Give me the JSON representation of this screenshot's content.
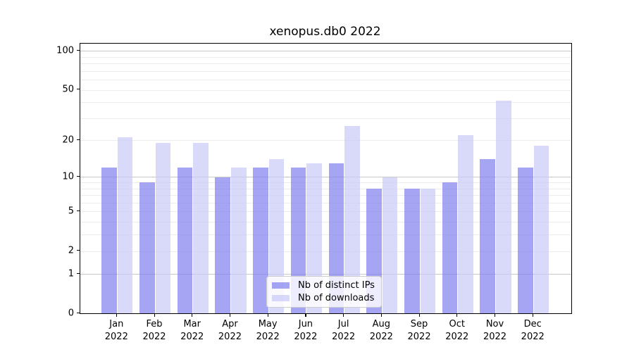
{
  "figure": {
    "title": "xenopus.db0 2022",
    "background_color": "#ffffff",
    "spine_color": "#000000"
  },
  "chart_data": {
    "type": "bar",
    "title": "xenopus.db0 2022",
    "categories": [
      "Jan 2022",
      "Feb 2022",
      "Mar 2022",
      "Apr 2022",
      "May 2022",
      "Jun 2022",
      "Jul 2022",
      "Aug 2022",
      "Sep 2022",
      "Oct 2022",
      "Nov 2022",
      "Dec 2022"
    ],
    "series": [
      {
        "name": "Nb of distinct IPs",
        "color": "rgba(130,130,240,0.72)",
        "color_hex_apparent": "#a5a5f4",
        "values": [
          12,
          9,
          12,
          10,
          12,
          12,
          13,
          8,
          8,
          9,
          14,
          12
        ]
      },
      {
        "name": "Nb of downloads",
        "color": "rgba(203,203,246,0.72)",
        "color_hex_apparent": "#dadaf8",
        "values": [
          21,
          19,
          19,
          12,
          14,
          13,
          26,
          10,
          8,
          22,
          41,
          18
        ]
      }
    ],
    "xlabel": "",
    "ylabel": "",
    "yscale": "log10(1+v)",
    "ylim": [
      0,
      114
    ],
    "ytick_values": [
      0,
      1,
      2,
      5,
      10,
      20,
      50,
      100
    ],
    "major_gridline_values": [
      1,
      10,
      100
    ],
    "minor_gridline_values": [
      2,
      3,
      4,
      5,
      6,
      7,
      8,
      9,
      20,
      30,
      40,
      50,
      60,
      70,
      80,
      90
    ],
    "grid": true,
    "legend_position": "lower center"
  },
  "legend": {
    "items": [
      {
        "label": "Nb of distinct IPs",
        "swatch_color": "rgba(130,130,240,0.72)"
      },
      {
        "label": "Nb of downloads",
        "swatch_color": "rgba(203,203,246,0.72)"
      }
    ]
  },
  "colors": {
    "gridline_minor": "#ececec",
    "gridline_major": "#c7c7c7",
    "tick_label_color": "#000000",
    "legend_border": "#cccccc"
  }
}
